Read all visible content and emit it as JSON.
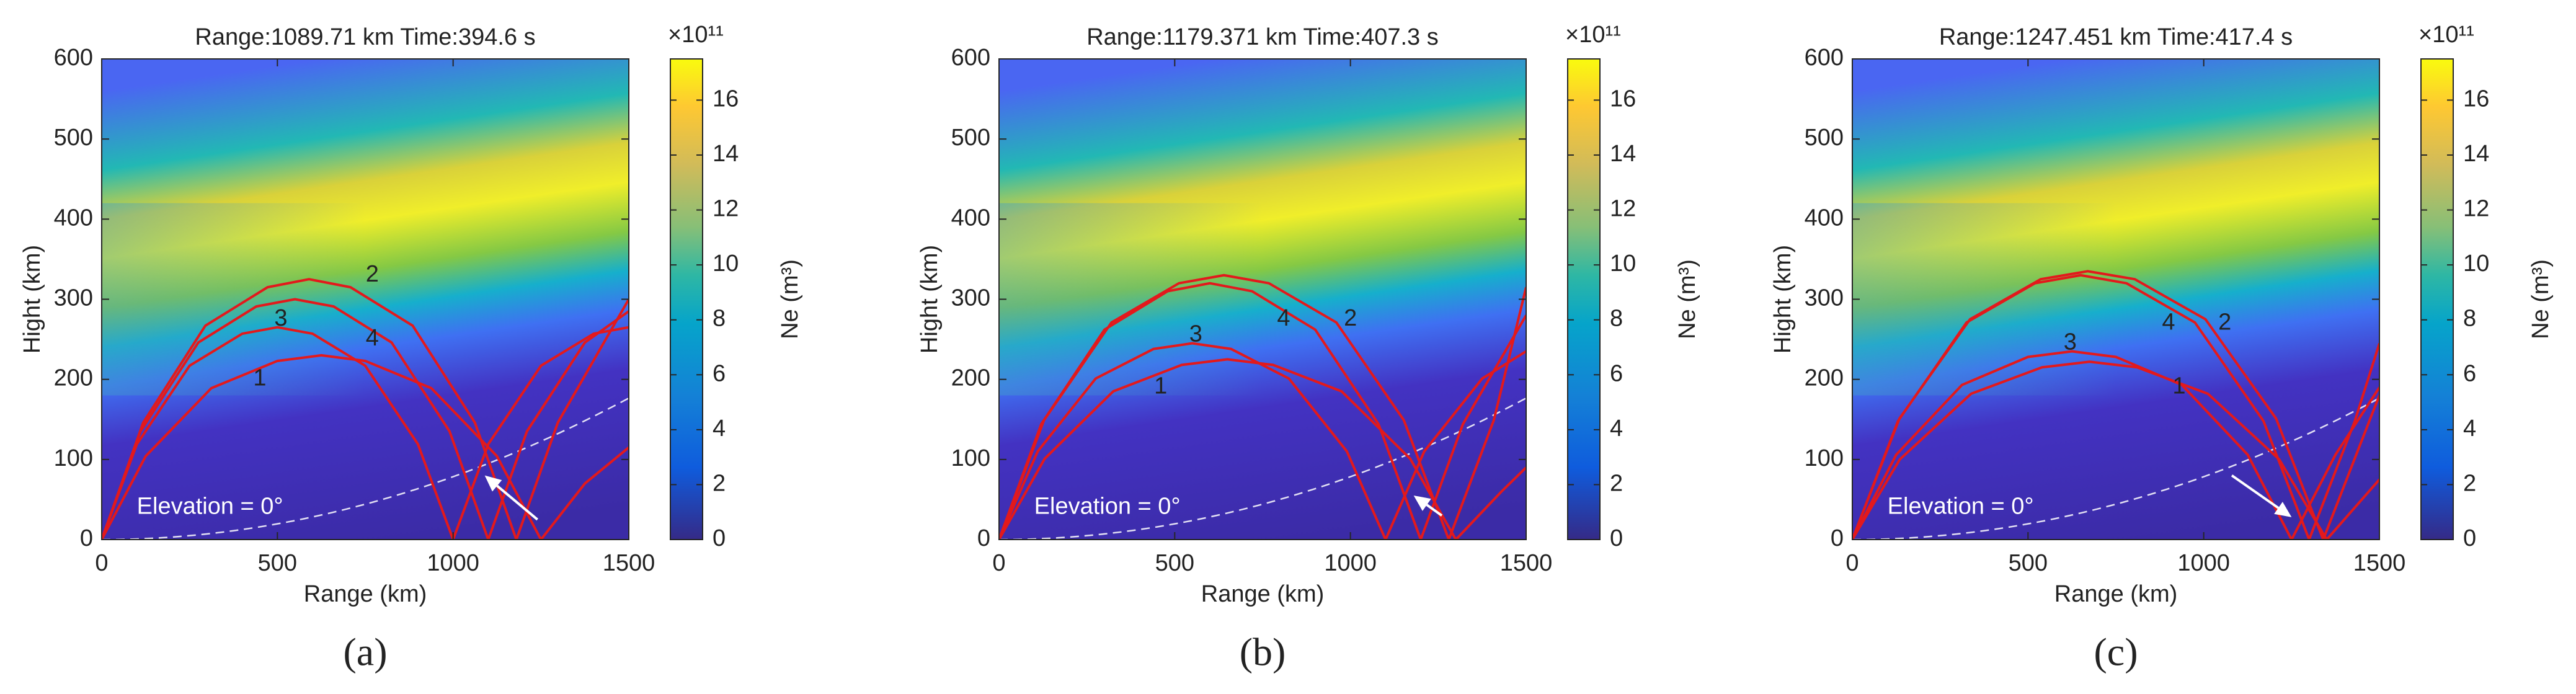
{
  "panels": [
    {
      "panel_label": "(a)",
      "chart_data": {
        "type": "line",
        "title": "Range:1089.71 km  Time:394.6 s",
        "xlabel": "Range (km)",
        "ylabel": "Hight (km)",
        "xlim": [
          0,
          1500
        ],
        "ylim": [
          0,
          600
        ],
        "xticks": [
          0,
          500,
          1000,
          1500
        ],
        "yticks": [
          0,
          100,
          200,
          300,
          400,
          500,
          600
        ],
        "annotation": "Elevation = 0°",
        "colorbar": {
          "label": "Ne (m³)",
          "exponent": "×10¹¹",
          "lim": [
            0,
            17.5
          ],
          "ticks": [
            0,
            2,
            4,
            6,
            8,
            10,
            12,
            14,
            16
          ]
        },
        "series": [
          {
            "label": "1",
            "color": "#e3191c",
            "x": [
              0,
              125,
              312,
              500,
              625,
              750,
              938,
              1125,
              1250,
              1375,
              1500
            ],
            "y": [
              0,
              104,
              189,
              223,
              230,
              223,
              189,
              104,
              0,
              70,
              115
            ]
          },
          {
            "label": "3",
            "color": "#e3191c",
            "x": [
              0,
              100,
              250,
              400,
              500,
              600,
              750,
              900,
              1000,
              1100,
              1250,
              1400,
              1500
            ],
            "y": [
              0,
              119,
              217,
              257,
              265,
              257,
              217,
              119,
              0,
              119,
              217,
              257,
              265
            ]
          },
          {
            "label": "4",
            "color": "#e3191c",
            "x": [
              0,
              110,
              275,
              440,
              550,
              660,
              825,
              990,
              1100,
              1210,
              1375,
              1500
            ],
            "y": [
              0,
              135,
              246,
              291,
              300,
              291,
              246,
              135,
              0,
              135,
              246,
              285
            ]
          },
          {
            "label": "2",
            "color": "#e3191c",
            "x": [
              0,
              118,
              295,
              472,
              590,
              708,
              885,
              1062,
              1180,
              1298,
              1500
            ],
            "y": [
              0,
              146,
              267,
              315,
              325,
              315,
              267,
              146,
              0,
              146,
              300
            ]
          }
        ]
      }
    },
    {
      "panel_label": "(b)",
      "chart_data": {
        "type": "line",
        "title": "Range:1179.371 km  Time:407.3 s",
        "xlabel": "Range (km)",
        "ylabel": "Hight (km)",
        "xlim": [
          0,
          1500
        ],
        "ylim": [
          0,
          600
        ],
        "xticks": [
          0,
          500,
          1000,
          1500
        ],
        "yticks": [
          0,
          100,
          200,
          300,
          400,
          500,
          600
        ],
        "annotation": "Elevation = 0°",
        "colorbar": {
          "label": "Ne (m³)",
          "exponent": "×10¹¹",
          "lim": [
            0,
            17.5
          ],
          "ticks": [
            0,
            2,
            4,
            6,
            8,
            10,
            12,
            14,
            16
          ]
        },
        "series": [
          {
            "label": "1",
            "color": "#e3191c",
            "x": [
              0,
              130,
              325,
              520,
              650,
              780,
              975,
              1170,
              1300,
              1430,
              1500
            ],
            "y": [
              0,
              101,
              185,
              218,
              225,
              218,
              185,
              101,
              0,
              60,
              90
            ]
          },
          {
            "label": "3",
            "color": "#e3191c",
            "x": [
              0,
              110,
              275,
              440,
              550,
              660,
              825,
              990,
              1100,
              1210,
              1375,
              1500
            ],
            "y": [
              0,
              110,
              201,
              238,
              245,
              238,
              201,
              110,
              0,
              110,
              201,
              235
            ]
          },
          {
            "label": "4",
            "color": "#e3191c",
            "x": [
              0,
              120,
              300,
              480,
              600,
              720,
              900,
              1080,
              1200,
              1320,
              1500
            ],
            "y": [
              0,
              144,
              262,
              310,
              320,
              310,
              262,
              144,
              0,
              144,
              280
            ]
          },
          {
            "label": "2",
            "color": "#e3191c",
            "x": [
              0,
              128,
              320,
              512,
              640,
              768,
              960,
              1152,
              1280,
              1408,
              1500
            ],
            "y": [
              0,
              149,
              271,
              320,
              330,
              320,
              271,
              149,
              0,
              149,
              315
            ]
          }
        ]
      }
    },
    {
      "panel_label": "(c)",
      "chart_data": {
        "type": "line",
        "title": "Range:1247.451 km  Time:417.4 s",
        "xlabel": "Range (km)",
        "ylabel": "Hight (km)",
        "xlim": [
          0,
          1500
        ],
        "ylim": [
          0,
          600
        ],
        "xticks": [
          0,
          500,
          1000,
          1500
        ],
        "yticks": [
          0,
          100,
          200,
          300,
          400,
          500,
          600
        ],
        "annotation": "Elevation = 0°",
        "colorbar": {
          "label": "Ne (m³)",
          "exponent": "×10¹¹",
          "lim": [
            0,
            17.5
          ],
          "ticks": [
            0,
            2,
            4,
            6,
            8,
            10,
            12,
            14,
            16
          ]
        },
        "series": [
          {
            "label": "3",
            "color": "#e3191c",
            "x": [
              0,
              125,
              312,
              500,
              625,
              750,
              938,
              1125,
              1250,
              1375,
              1500
            ],
            "y": [
              0,
              106,
              193,
              228,
              235,
              228,
              193,
              106,
              0,
              106,
              190
            ]
          },
          {
            "label": "1",
            "color": "#e3191c",
            "x": [
              0,
              135,
              338,
              540,
              675,
              810,
              1012,
              1215,
              1350,
              1500
            ],
            "y": [
              0,
              100,
              182,
              215,
              222,
              215,
              182,
              100,
              0,
              75
            ]
          },
          {
            "label": "4",
            "color": "#e3191c",
            "x": [
              0,
              130,
              325,
              520,
              650,
              780,
              975,
              1170,
              1300,
              1430,
              1500
            ],
            "y": [
              0,
              148,
              271,
              320,
              330,
              320,
              271,
              148,
              0,
              148,
              245
            ]
          },
          {
            "label": "2",
            "color": "#e3191c",
            "x": [
              0,
              134,
              335,
              536,
              670,
              804,
              1005,
              1206,
              1340,
              1474,
              1500
            ],
            "y": [
              0,
              151,
              275,
              325,
              335,
              325,
              275,
              151,
              0,
              151,
              180
            ]
          }
        ]
      }
    }
  ]
}
